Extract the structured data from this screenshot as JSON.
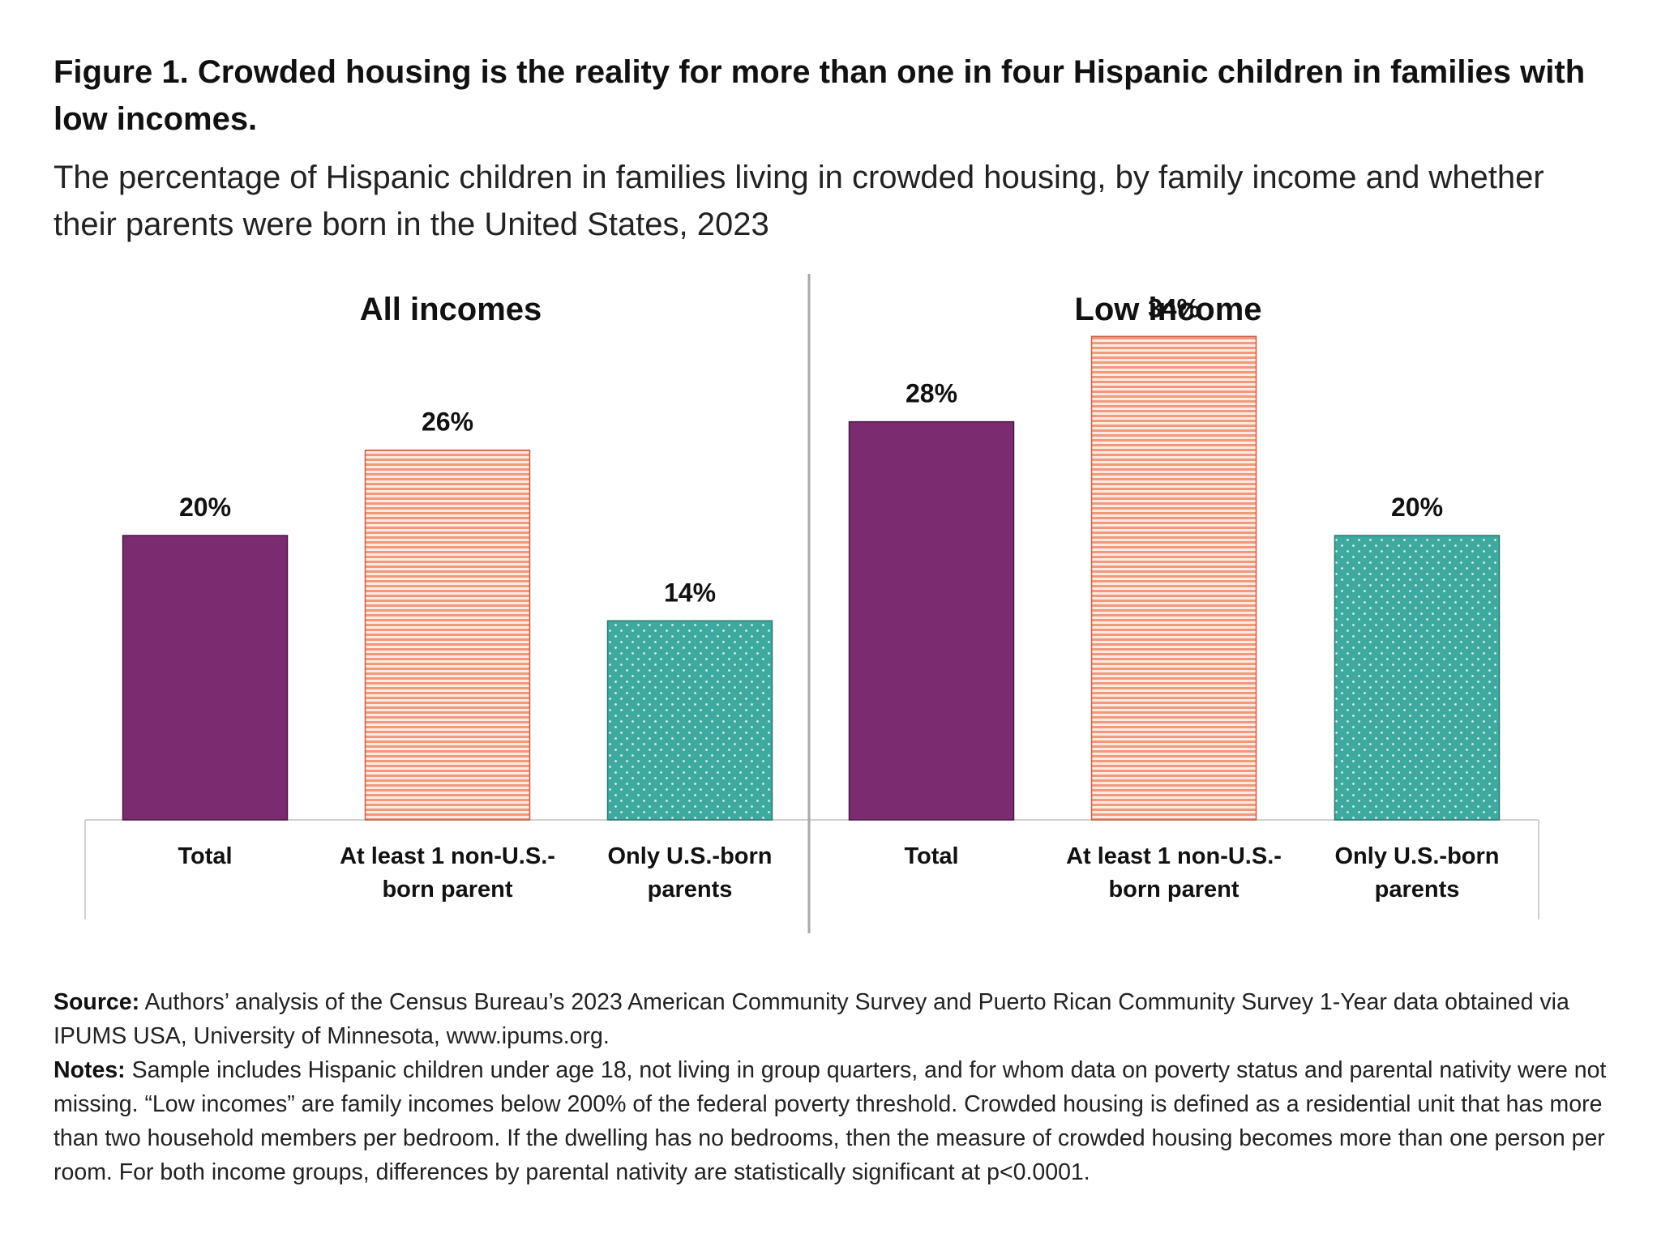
{
  "figure": {
    "title": "Figure 1. Crowded housing is the reality for more than one in four Hispanic children in families with low incomes.",
    "subtitle": "The percentage of Hispanic children in families living in crowded housing, by family income and whether their parents were born in the United States, 2023"
  },
  "chart_data": {
    "type": "bar",
    "ylim": [
      0,
      40
    ],
    "grid": false,
    "legend": "none",
    "unit": "%",
    "colors": {
      "total": "#7b2c70",
      "non_us_born": "#f2997c",
      "us_born": "#3ea99f"
    },
    "panels": [
      {
        "title": "All incomes",
        "categories": [
          "Total",
          "At least 1 non-U.S.-born parent",
          "Only U.S.-born parents"
        ],
        "category_lines": [
          [
            "Total"
          ],
          [
            "At least 1 non-U.S.-",
            "born parent"
          ],
          [
            "Only U.S.-born",
            "parents"
          ]
        ],
        "values": [
          20,
          26,
          14
        ],
        "labels": [
          "20%",
          "26%",
          "14%"
        ]
      },
      {
        "title": "Low income",
        "categories": [
          "Total",
          "At least 1 non-U.S.-born parent",
          "Only U.S.-born parents"
        ],
        "category_lines": [
          [
            "Total"
          ],
          [
            "At least 1 non-U.S.-",
            "born parent"
          ],
          [
            "Only U.S.-born",
            "parents"
          ]
        ],
        "values": [
          28,
          34,
          20
        ],
        "labels": [
          "28%",
          "34%",
          "20%"
        ]
      }
    ]
  },
  "notes": {
    "source_label": "Source:",
    "source_text": " Authors’ analysis of the Census Bureau’s 2023 American Community Survey and Puerto Rican Community Survey 1-Year data obtained via IPUMS USA, University of Minnesota, www.ipums.org.",
    "notes_label": "Notes:",
    "notes_text": " Sample includes Hispanic children under age 18, not living in group quarters, and for whom data on poverty status and parental nativity were not missing. “Low incomes” are family incomes below 200% of the federal poverty threshold. Crowded housing is defined as a residential unit that has more than two household members per bedroom. If the dwelling has no bedrooms, then the measure of crowded housing becomes more than one person per room. For both income groups, differences by parental nativity are statistically significant at p<0.0001."
  }
}
